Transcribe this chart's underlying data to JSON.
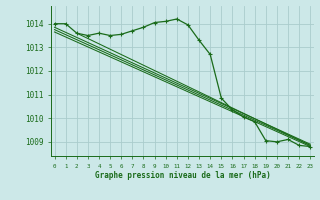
{
  "background_color": "#cce8e8",
  "grid_color": "#aacccc",
  "line_color": "#1a6b1a",
  "title": "Graphe pression niveau de la mer (hPa)",
  "ylim": [
    1008.4,
    1014.75
  ],
  "yticks": [
    1009,
    1010,
    1011,
    1012,
    1013,
    1014
  ],
  "xlabel_hours": [
    0,
    1,
    2,
    3,
    4,
    5,
    6,
    7,
    8,
    9,
    10,
    11,
    12,
    13,
    14,
    15,
    16,
    17,
    18,
    19,
    20,
    21,
    22,
    23
  ],
  "main_x": [
    0,
    1,
    2,
    3,
    4,
    5,
    6,
    7,
    8,
    9,
    10,
    11,
    12,
    13,
    14,
    15,
    16,
    17,
    18,
    19,
    20,
    21,
    22,
    23
  ],
  "main_y": [
    1014.0,
    1014.0,
    1013.6,
    1013.5,
    1013.6,
    1013.5,
    1013.55,
    1013.7,
    1013.85,
    1014.05,
    1014.1,
    1014.2,
    1013.95,
    1013.3,
    1012.7,
    1010.85,
    1010.35,
    1010.05,
    1009.85,
    1009.05,
    1009.0,
    1009.1,
    1008.85,
    1008.8
  ],
  "trend_lines": [
    {
      "x": [
        0,
        23
      ],
      "y": [
        1013.85,
        1008.9
      ]
    },
    {
      "x": [
        0,
        23
      ],
      "y": [
        1013.75,
        1008.85
      ]
    },
    {
      "x": [
        0,
        23
      ],
      "y": [
        1013.65,
        1008.8
      ]
    },
    {
      "x": [
        2,
        23
      ],
      "y": [
        1013.6,
        1008.85
      ]
    }
  ]
}
